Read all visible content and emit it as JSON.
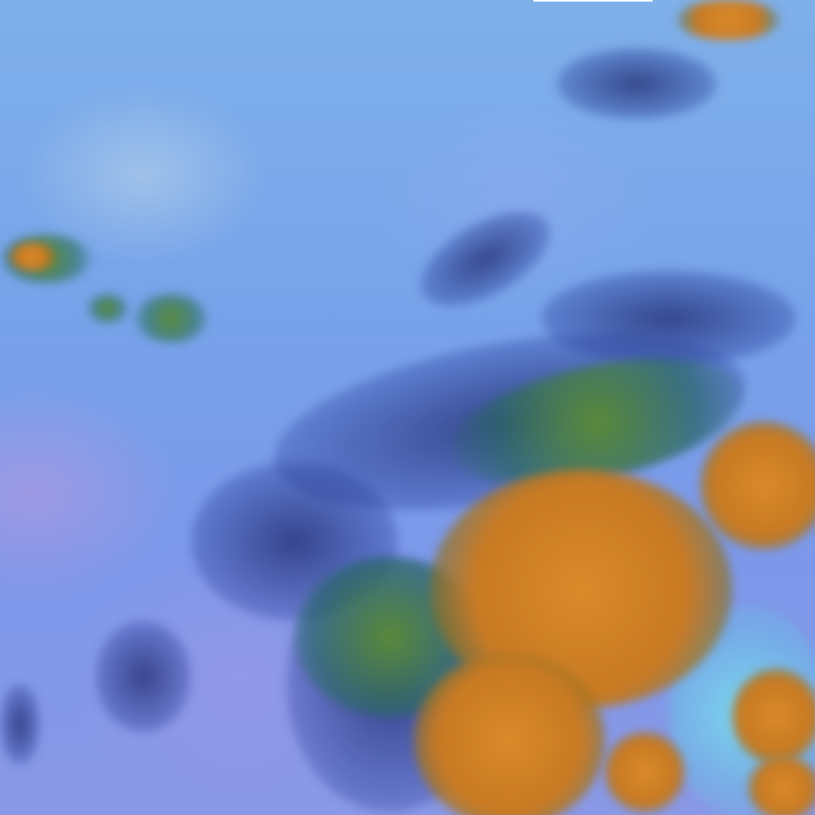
{
  "image": {
    "kind": "false-color satellite imagery",
    "colors": {
      "background_sky_blue": "#7aa6ea",
      "cloud_orange": "#d98a2a",
      "cloud_dark_band": "#1e2a6e",
      "land_green": "#5a8a3a",
      "cyan_cloud": "#78e6f0"
    }
  }
}
